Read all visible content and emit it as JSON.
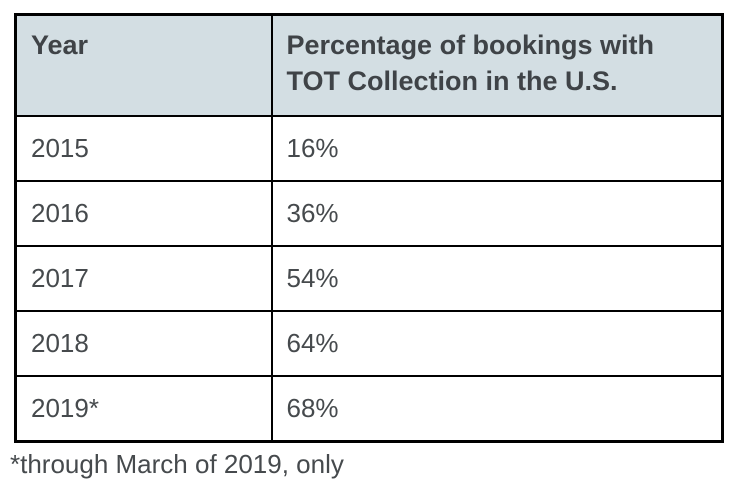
{
  "colors": {
    "header_background": "#d3dee3",
    "border": "#000000",
    "text": "#464a4d"
  },
  "table": {
    "headers": [
      "Year",
      "Percentage of bookings with TOT Collection in the U.S."
    ],
    "rows": [
      [
        "2015",
        "16%"
      ],
      [
        "2016",
        "36%"
      ],
      [
        "2017",
        "54%"
      ],
      [
        "2018",
        "64%"
      ],
      [
        "2019*",
        "68%"
      ]
    ]
  },
  "footnote": "*through March of 2019, only",
  "chart_data": {
    "type": "table",
    "columns": [
      "Year",
      "Percentage of bookings with TOT Collection in the U.S."
    ],
    "rows": [
      [
        "2015",
        "16%"
      ],
      [
        "2016",
        "36%"
      ],
      [
        "2017",
        "54%"
      ],
      [
        "2018",
        "64%"
      ],
      [
        "2019*",
        "68%"
      ]
    ],
    "footnote": "*through March of 2019, only"
  }
}
